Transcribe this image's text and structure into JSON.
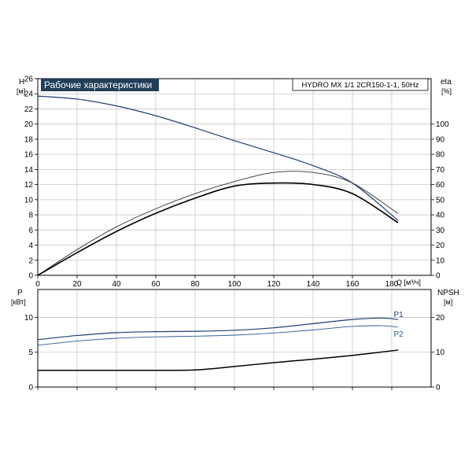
{
  "chart_data": [
    {
      "type": "line",
      "title": "Рабочие характеристики",
      "label": "HYDRO MX 1/1 2CR150-1-1, 50Hz",
      "grid": true,
      "x_axis": {
        "label": "Q [м³/ч]",
        "range": [
          0,
          200
        ],
        "ticks": [
          0,
          20,
          40,
          60,
          80,
          100,
          120,
          140,
          160,
          180
        ],
        "tick_labels": [
          "0",
          "20",
          "40",
          "60",
          "80",
          "100",
          "120",
          "140",
          "160",
          "180"
        ]
      },
      "y_axis_left": {
        "symbol": "H",
        "unit": "[м]",
        "range": [
          0,
          26
        ],
        "ticks": [
          0,
          2,
          4,
          6,
          8,
          10,
          12,
          14,
          16,
          18,
          20,
          22,
          24,
          26
        ],
        "tick_labels": [
          "0",
          "2",
          "4",
          "6",
          "8",
          "10",
          "12",
          "14",
          "16",
          "18",
          "20",
          "22",
          "24",
          "26"
        ]
      },
      "y_axis_right": {
        "symbol": "eta",
        "unit": "[%]",
        "range": [
          0,
          130
        ],
        "ticks": [
          0,
          10,
          20,
          30,
          40,
          50,
          60,
          70,
          80,
          90,
          100
        ],
        "tick_labels": [
          "0",
          "10",
          "20",
          "30",
          "40",
          "50",
          "60",
          "70",
          "80",
          "90",
          "100"
        ]
      },
      "series": [
        {
          "axis": "left",
          "color": "#1f3f73",
          "x": [
            0,
            20,
            40,
            60,
            80,
            100,
            120,
            140,
            160,
            183
          ],
          "values": [
            23.7,
            23.3,
            22.4,
            21.1,
            19.5,
            17.8,
            16.2,
            14.5,
            12.2,
            7.3
          ]
        },
        {
          "axis": "right",
          "color": "#333333",
          "x": [
            0,
            20,
            40,
            60,
            80,
            100,
            120,
            140,
            160,
            183
          ],
          "values": [
            0,
            17,
            32,
            44,
            54,
            62,
            68,
            68,
            61,
            41
          ]
        },
        {
          "axis": "right",
          "color": "#000000",
          "x": [
            0,
            20,
            40,
            60,
            80,
            100,
            120,
            140,
            160,
            183
          ],
          "values": [
            0,
            15,
            29,
            41,
            51,
            59,
            61,
            60,
            54,
            35
          ]
        }
      ]
    },
    {
      "type": "line",
      "grid": true,
      "x_axis": {
        "range": [
          0,
          200
        ],
        "ticks": [
          0,
          20,
          40,
          60,
          80,
          100,
          120,
          140,
          160,
          180
        ]
      },
      "y_axis_left": {
        "symbol": "P",
        "unit": "[кВт]",
        "range": [
          0,
          14
        ],
        "ticks": [
          0,
          5,
          10
        ],
        "tick_labels": [
          "0",
          "5",
          "10"
        ]
      },
      "y_axis_right": {
        "symbol": "NPSH",
        "unit": "[м]",
        "range": [
          0,
          28
        ],
        "ticks": [
          0,
          10,
          20
        ],
        "tick_labels": [
          "0",
          "10",
          "20"
        ]
      },
      "series": [
        {
          "name": "P1",
          "axis": "left",
          "color": "#1f3f73",
          "x": [
            0,
            20,
            40,
            60,
            80,
            100,
            120,
            140,
            160,
            175,
            183
          ],
          "values": [
            6.8,
            7.4,
            7.8,
            7.95,
            8.0,
            8.15,
            8.5,
            9.1,
            9.7,
            9.9,
            9.7
          ]
        },
        {
          "name": "P2",
          "axis": "left",
          "color": "#2b5a9a",
          "x": [
            0,
            20,
            40,
            60,
            80,
            100,
            120,
            140,
            160,
            175,
            183
          ],
          "values": [
            6.0,
            6.6,
            7.0,
            7.2,
            7.3,
            7.45,
            7.75,
            8.2,
            8.7,
            8.8,
            8.6
          ]
        },
        {
          "axis": "right",
          "color": "#000000",
          "x": [
            0,
            40,
            60,
            80,
            100,
            120,
            140,
            160,
            183
          ],
          "values": [
            4.8,
            4.8,
            4.8,
            4.9,
            5.9,
            7.0,
            8.0,
            9.1,
            10.6
          ]
        }
      ]
    }
  ]
}
